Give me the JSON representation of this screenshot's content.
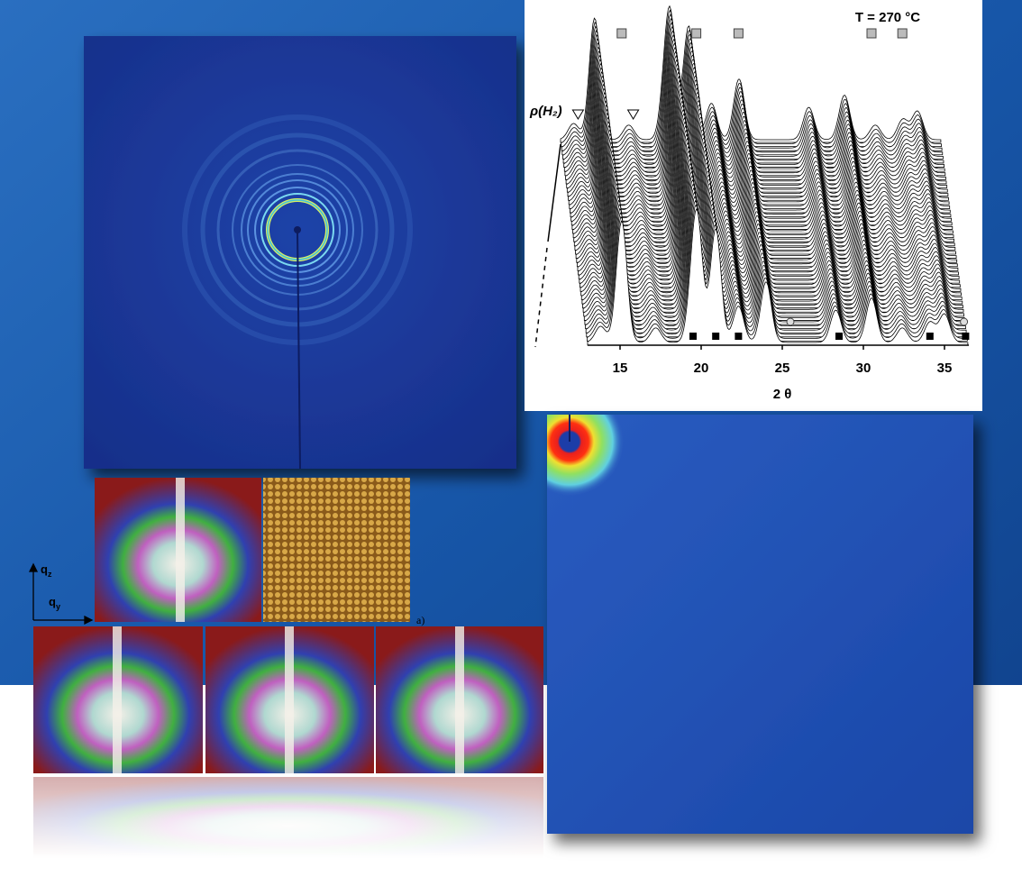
{
  "plot": {
    "title": "T = 270 °C",
    "y_label": "ρ(H₂)",
    "x_label": "2 θ",
    "xlim": [
      13,
      36.5
    ],
    "xticks": [
      15,
      20,
      25,
      30,
      35
    ],
    "peaks": [
      {
        "two_theta": 13.8,
        "intensity": 20
      },
      {
        "two_theta": 15.1,
        "intensity": 150
      },
      {
        "two_theta": 17.2,
        "intensity": 18
      },
      {
        "two_theta": 19.5,
        "intensity": 60
      },
      {
        "two_theta": 19.8,
        "intensity": 120
      },
      {
        "two_theta": 20.9,
        "intensity": 140
      },
      {
        "two_theta": 22.3,
        "intensity": 45
      },
      {
        "two_theta": 24.0,
        "intensity": 75
      },
      {
        "two_theta": 28.3,
        "intensity": 40
      },
      {
        "two_theta": 30.5,
        "intensity": 55
      },
      {
        "two_theta": 32.4,
        "intensity": 18
      },
      {
        "two_theta": 34.1,
        "intensity": 25
      },
      {
        "two_theta": 35.0,
        "intensity": 35
      }
    ],
    "markers": {
      "square_open": [
        15.1,
        19.7,
        22.3,
        30.5,
        32.4
      ],
      "triangle": [
        13.8,
        17.2
      ],
      "square_filled": [
        19.5,
        20.9,
        22.3,
        28.5,
        34.1,
        36.3
      ],
      "circle": [
        25.5,
        36.2
      ]
    }
  },
  "gisaxs": {
    "q_vertical": {
      "symbol": "q",
      "subscript": "z"
    },
    "q_horizontal": {
      "symbol": "q",
      "subscript": "y"
    },
    "panel_label": "a)"
  }
}
